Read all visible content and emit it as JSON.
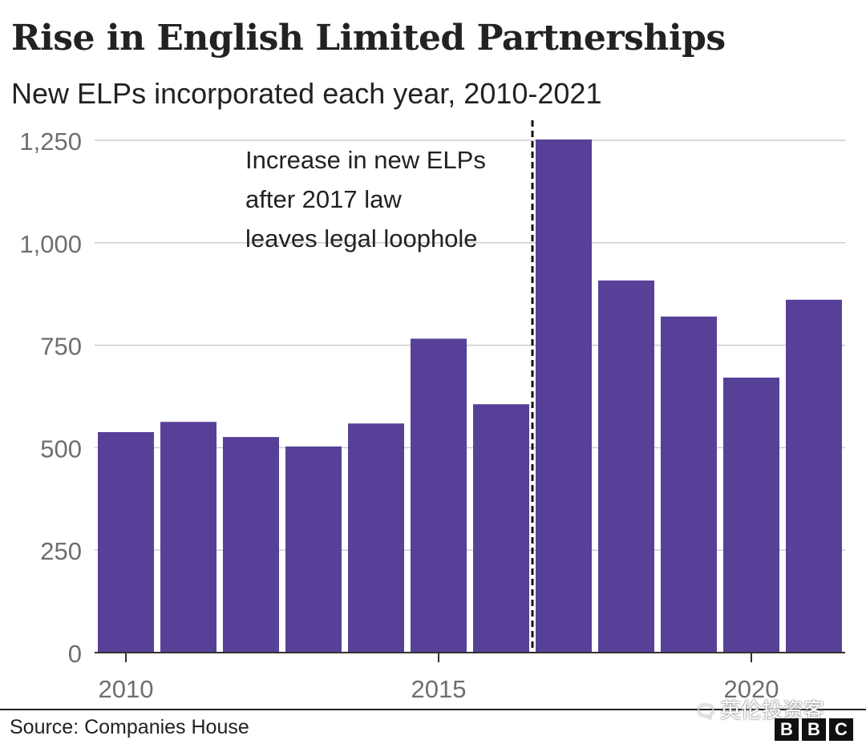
{
  "chart_data": {
    "type": "bar",
    "title": "Rise in English Limited Partnerships",
    "subtitle": "New ELPs incorporated each year, 2010-2021",
    "categories": [
      "2010",
      "2011",
      "2012",
      "2013",
      "2014",
      "2015",
      "2016",
      "2017",
      "2018",
      "2019",
      "2020",
      "2021"
    ],
    "values": [
      538,
      563,
      526,
      503,
      559,
      766,
      606,
      1252,
      908,
      820,
      671,
      861
    ],
    "xtick_labels": [
      "2010",
      "2015",
      "2020"
    ],
    "yticks": [
      0,
      250,
      500,
      750,
      1000,
      1250
    ],
    "ytick_labels": [
      "0",
      "250",
      "500",
      "750",
      "1,000",
      "1,250"
    ],
    "ylim": [
      0,
      1250
    ],
    "xlabel": "",
    "ylabel": "",
    "grid": true,
    "bar_color": "#574198",
    "annotation": {
      "lines": [
        "Increase in new ELPs",
        "after 2017 law",
        "leaves legal loophole"
      ],
      "marker_between": [
        "2016",
        "2017"
      ]
    }
  },
  "footer": {
    "source": "Source: Companies House",
    "logo_letters": [
      "B",
      "B",
      "C"
    ],
    "watermark": "英伦投资客"
  }
}
